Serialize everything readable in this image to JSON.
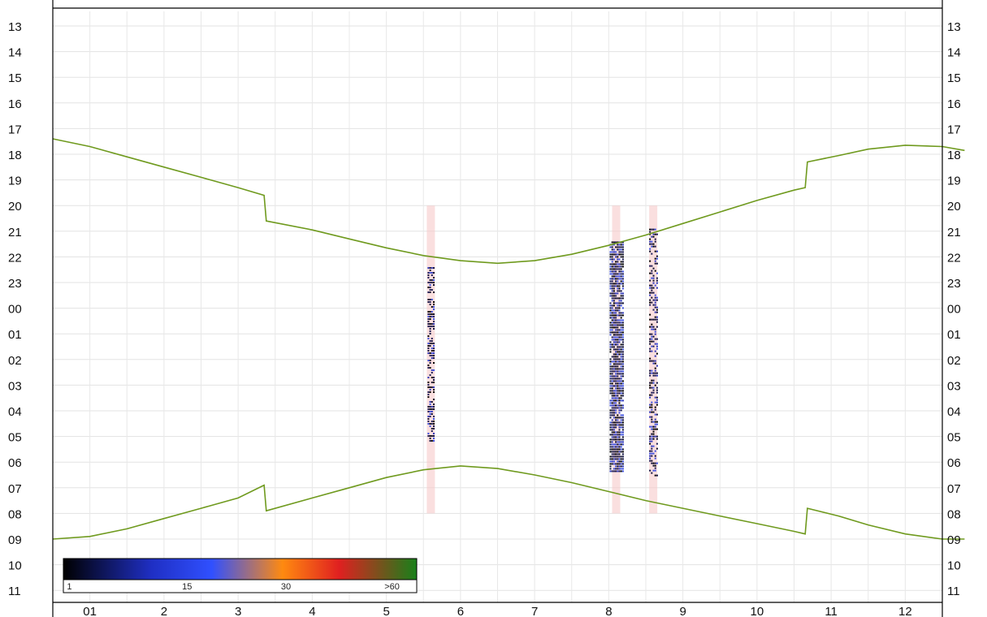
{
  "chart_data": {
    "type": "heatmap",
    "title": "",
    "x_labels": [
      "01",
      "2",
      "3",
      "4",
      "5",
      "6",
      "7",
      "8",
      "9",
      "10",
      "11",
      "12"
    ],
    "y_labels": [
      "13",
      "14",
      "15",
      "16",
      "17",
      "18",
      "19",
      "20",
      "21",
      "22",
      "23",
      "00",
      "01",
      "02",
      "03",
      "04",
      "05",
      "06",
      "07",
      "08",
      "09",
      "10",
      "11"
    ],
    "grid": true,
    "colorbar": {
      "labels": [
        "1",
        "15",
        "30",
        ">60"
      ],
      "stops": [
        {
          "value": 0.0,
          "color": "#000000"
        },
        {
          "value": 0.25,
          "color": "#1f2fc4"
        },
        {
          "value": 0.42,
          "color": "#3050ff"
        },
        {
          "value": 0.62,
          "color": "#ff8a10"
        },
        {
          "value": 0.78,
          "color": "#e02020"
        },
        {
          "value": 1.0,
          "color": "#18801a"
        }
      ],
      "placement": "bottom-left"
    },
    "sunset_curve": {
      "color": "#6f9a1e",
      "points": [
        [
          0.0,
          17.4
        ],
        [
          0.5,
          17.7
        ],
        [
          1.0,
          18.1
        ],
        [
          1.5,
          18.5
        ],
        [
          2.0,
          18.9
        ],
        [
          2.5,
          19.3
        ],
        [
          2.85,
          19.6
        ],
        [
          2.88,
          20.6
        ],
        [
          3.5,
          20.95
        ],
        [
          4.0,
          21.3
        ],
        [
          4.5,
          21.65
        ],
        [
          5.0,
          21.95
        ],
        [
          5.5,
          22.15
        ],
        [
          6.0,
          22.25
        ],
        [
          6.5,
          22.15
        ],
        [
          7.0,
          21.9
        ],
        [
          7.5,
          21.55
        ],
        [
          8.0,
          21.15
        ],
        [
          8.5,
          20.7
        ],
        [
          9.0,
          20.25
        ],
        [
          9.5,
          19.8
        ],
        [
          10.0,
          19.4
        ],
        [
          10.15,
          19.3
        ],
        [
          10.18,
          18.3
        ],
        [
          10.6,
          18.05
        ],
        [
          11.0,
          17.8
        ],
        [
          11.5,
          17.65
        ],
        [
          12.0,
          17.7
        ],
        [
          12.3,
          17.85
        ]
      ]
    },
    "sunrise_curve": {
      "color": "#6f9a1e",
      "points": [
        [
          0.0,
          33.0
        ],
        [
          0.5,
          32.9
        ],
        [
          1.0,
          32.6
        ],
        [
          1.5,
          32.2
        ],
        [
          2.0,
          31.8
        ],
        [
          2.5,
          31.4
        ],
        [
          2.85,
          30.9
        ],
        [
          2.88,
          31.9
        ],
        [
          3.5,
          31.4
        ],
        [
          4.0,
          31.0
        ],
        [
          4.5,
          30.6
        ],
        [
          5.0,
          30.3
        ],
        [
          5.5,
          30.15
        ],
        [
          6.0,
          30.25
        ],
        [
          6.5,
          30.5
        ],
        [
          7.0,
          30.8
        ],
        [
          7.5,
          31.15
        ],
        [
          8.0,
          31.5
        ],
        [
          8.5,
          31.8
        ],
        [
          9.0,
          32.1
        ],
        [
          9.5,
          32.4
        ],
        [
          10.0,
          32.7
        ],
        [
          10.15,
          32.8
        ],
        [
          10.18,
          31.8
        ],
        [
          10.6,
          32.1
        ],
        [
          11.0,
          32.45
        ],
        [
          11.5,
          32.8
        ],
        [
          12.0,
          33.0
        ],
        [
          12.3,
          33.0
        ]
      ]
    },
    "highlight_bands": [
      {
        "x": 5.1,
        "y_start": 20.0,
        "y_end": 32.0
      },
      {
        "x": 7.6,
        "y_start": 20.0,
        "y_end": 32.0
      },
      {
        "x": 8.1,
        "y_start": 20.0,
        "y_end": 32.0
      }
    ],
    "detections": [
      {
        "x": 5.1,
        "y_start": 22.4,
        "y_end": 29.2,
        "density": 0.55
      },
      {
        "x": 7.6,
        "y_start": 21.4,
        "y_end": 30.4,
        "density": 0.85
      },
      {
        "x": 8.1,
        "y_start": 20.9,
        "y_end": 30.7,
        "density": 0.5
      }
    ]
  }
}
